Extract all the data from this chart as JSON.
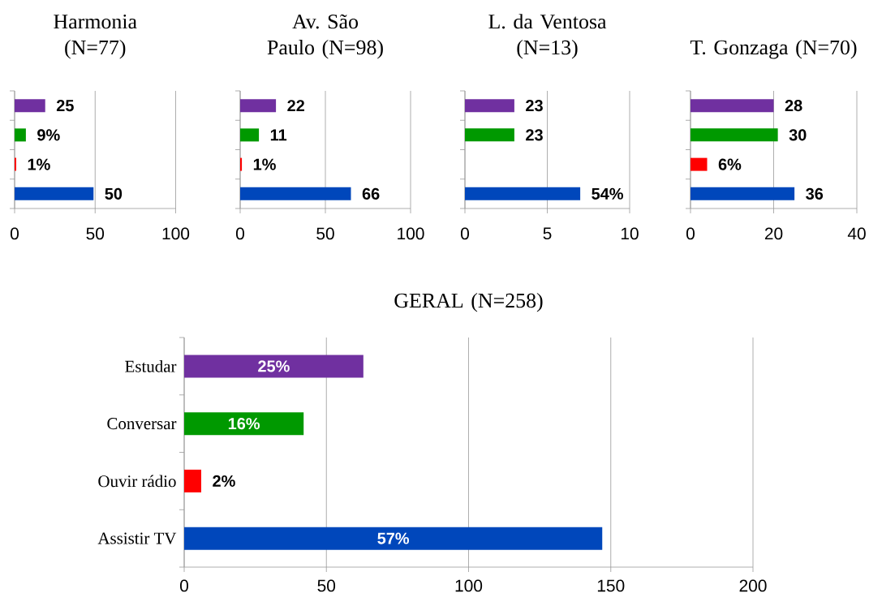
{
  "chart_data": [
    {
      "type": "bar",
      "orientation": "horizontal",
      "title": "Harmonia (N=77)",
      "categories": [
        null,
        null,
        null,
        null
      ],
      "values": [
        19,
        7,
        1,
        49
      ],
      "colors": [
        "#7030a0",
        "#009900",
        "#ff0000",
        "#0047bb"
      ],
      "xlim": [
        0,
        100
      ],
      "xticks": [
        0,
        50,
        100
      ],
      "grid": "x",
      "annotations": [
        {
          "text": "25",
          "x": 19
        },
        {
          "text": "9%",
          "x": 7
        },
        {
          "text": "1%",
          "x": 1
        },
        {
          "text": "50",
          "x": 49
        }
      ]
    },
    {
      "type": "bar",
      "orientation": "horizontal",
      "title": "Av. São Paulo (N=98)",
      "categories": [
        null,
        null,
        null,
        null
      ],
      "values": [
        21,
        11,
        1,
        65
      ],
      "colors": [
        "#7030a0",
        "#009900",
        "#ff0000",
        "#0047bb"
      ],
      "xlim": [
        0,
        100
      ],
      "xticks": [
        0,
        50,
        100
      ],
      "grid": "x",
      "annotations": [
        {
          "text": "22",
          "x": 21
        },
        {
          "text": "11",
          "x": 11
        },
        {
          "text": "1%",
          "x": 1
        },
        {
          "text": "66",
          "x": 65
        }
      ]
    },
    {
      "type": "bar",
      "orientation": "horizontal",
      "title": "L. da Ventosa (N=13)",
      "categories": [
        null,
        null,
        null,
        null
      ],
      "values": [
        3,
        3,
        0,
        7
      ],
      "colors": [
        "#7030a0",
        "#009900",
        "#ff0000",
        "#0047bb"
      ],
      "xlim": [
        0,
        10
      ],
      "xticks": [
        0,
        5,
        10
      ],
      "grid": "x",
      "annotations": [
        {
          "text": "23",
          "x": 3
        },
        {
          "text": "23",
          "x": 3
        },
        {
          "text": "54%",
          "x": 7
        }
      ]
    },
    {
      "type": "bar",
      "orientation": "horizontal",
      "title": "T. Gonzaga (N=70)",
      "categories": [
        null,
        null,
        null,
        null
      ],
      "values": [
        20,
        21,
        4,
        25
      ],
      "colors": [
        "#7030a0",
        "#009900",
        "#ff0000",
        "#0047bb"
      ],
      "xlim": [
        0,
        40
      ],
      "xticks": [
        0,
        20,
        40
      ],
      "grid": "x",
      "annotations": [
        {
          "text": "28",
          "x": 20
        },
        {
          "text": "30",
          "x": 21
        },
        {
          "text": "6%",
          "x": 4
        },
        {
          "text": "36",
          "x": 25
        }
      ]
    },
    {
      "type": "bar",
      "orientation": "horizontal",
      "title": "GERAL (N=258)",
      "categories": [
        "Estudar",
        "Conversar",
        "Ouvir rádio",
        "Assistir TV"
      ],
      "values": [
        63,
        42,
        6,
        147
      ],
      "colors": [
        "#7030a0",
        "#009900",
        "#ff0000",
        "#0047bb"
      ],
      "xlim": [
        0,
        200
      ],
      "xticks": [
        0,
        50,
        100,
        150,
        200
      ],
      "grid": "x",
      "annotations": [
        "25%",
        "16%",
        "2%",
        "57%"
      ]
    }
  ]
}
